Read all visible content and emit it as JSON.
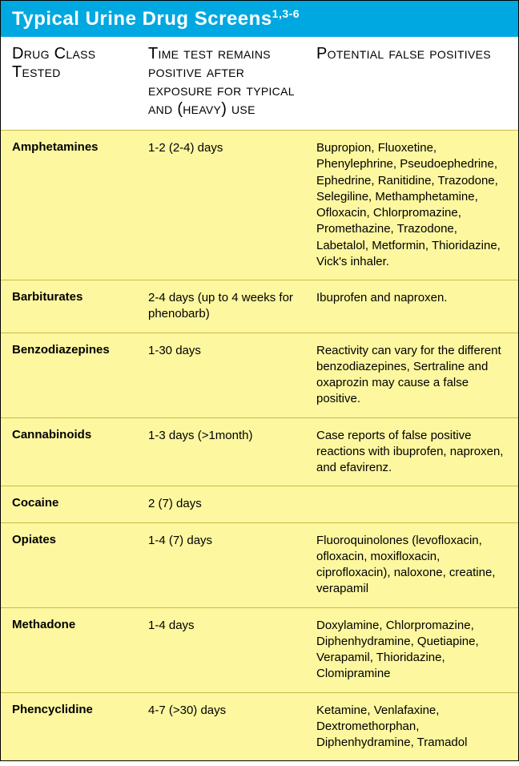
{
  "title": {
    "main": "Typical Urine Drug Screens",
    "sup": "1,3-6"
  },
  "headers": {
    "col1": "Drug Class Tested",
    "col2": "Time test remains positive after exposure for typical and (heavy) use",
    "col3": "Potential false positives"
  },
  "rows": [
    {
      "drug": "Amphetamines",
      "time": "1-2 (2-4) days",
      "false_pos": "Bupropion, Fluoxetine, Phenylephrine, Pseudoephedrine, Ephedrine, Ranitidine, Trazodone, Selegiline, Methamphetamine, Ofloxacin, Chlorpromazine, Promethazine, Trazodone, Labetalol, Metformin, Thioridazine, Vick's inhaler."
    },
    {
      "drug": "Barbiturates",
      "time": "2-4 days (up to 4 weeks for phenobarb)",
      "false_pos": "Ibuprofen and naproxen."
    },
    {
      "drug": "Benzodiazepines",
      "time": "1-30 days",
      "false_pos": "Reactivity can vary for the different benzodiazepines, Sertraline and oxaprozin may cause a false positive."
    },
    {
      "drug": "Cannabinoids",
      "time": "1-3 days (>1month)",
      "false_pos": "Case reports of false positive reactions with ibuprofen, naproxen, and efavirenz."
    },
    {
      "drug": "Cocaine",
      "time": "2 (7) days",
      "false_pos": ""
    },
    {
      "drug": "Opiates",
      "time": "1-4 (7) days",
      "false_pos": "Fluoroquinolones (levofloxacin, ofloxacin, moxifloxacin, ciprofloxacin), naloxone, creatine, verapamil"
    },
    {
      "drug": "Methadone",
      "time": "1-4 days",
      "false_pos": "Doxylamine, Chlorpromazine, Diphenhydramine, Quetiapine, Verapamil, Thioridazine, Clomipramine"
    },
    {
      "drug": "Phencyclidine",
      "time": "4-7 (>30) days",
      "false_pos": "Ketamine, Venlafaxine, Dextromethorphan, Diphenhydramine, Tramadol"
    }
  ],
  "colors": {
    "title_bg": "#00a8e1",
    "row_bg": "#fdf79f",
    "border": "#c9b94a"
  }
}
